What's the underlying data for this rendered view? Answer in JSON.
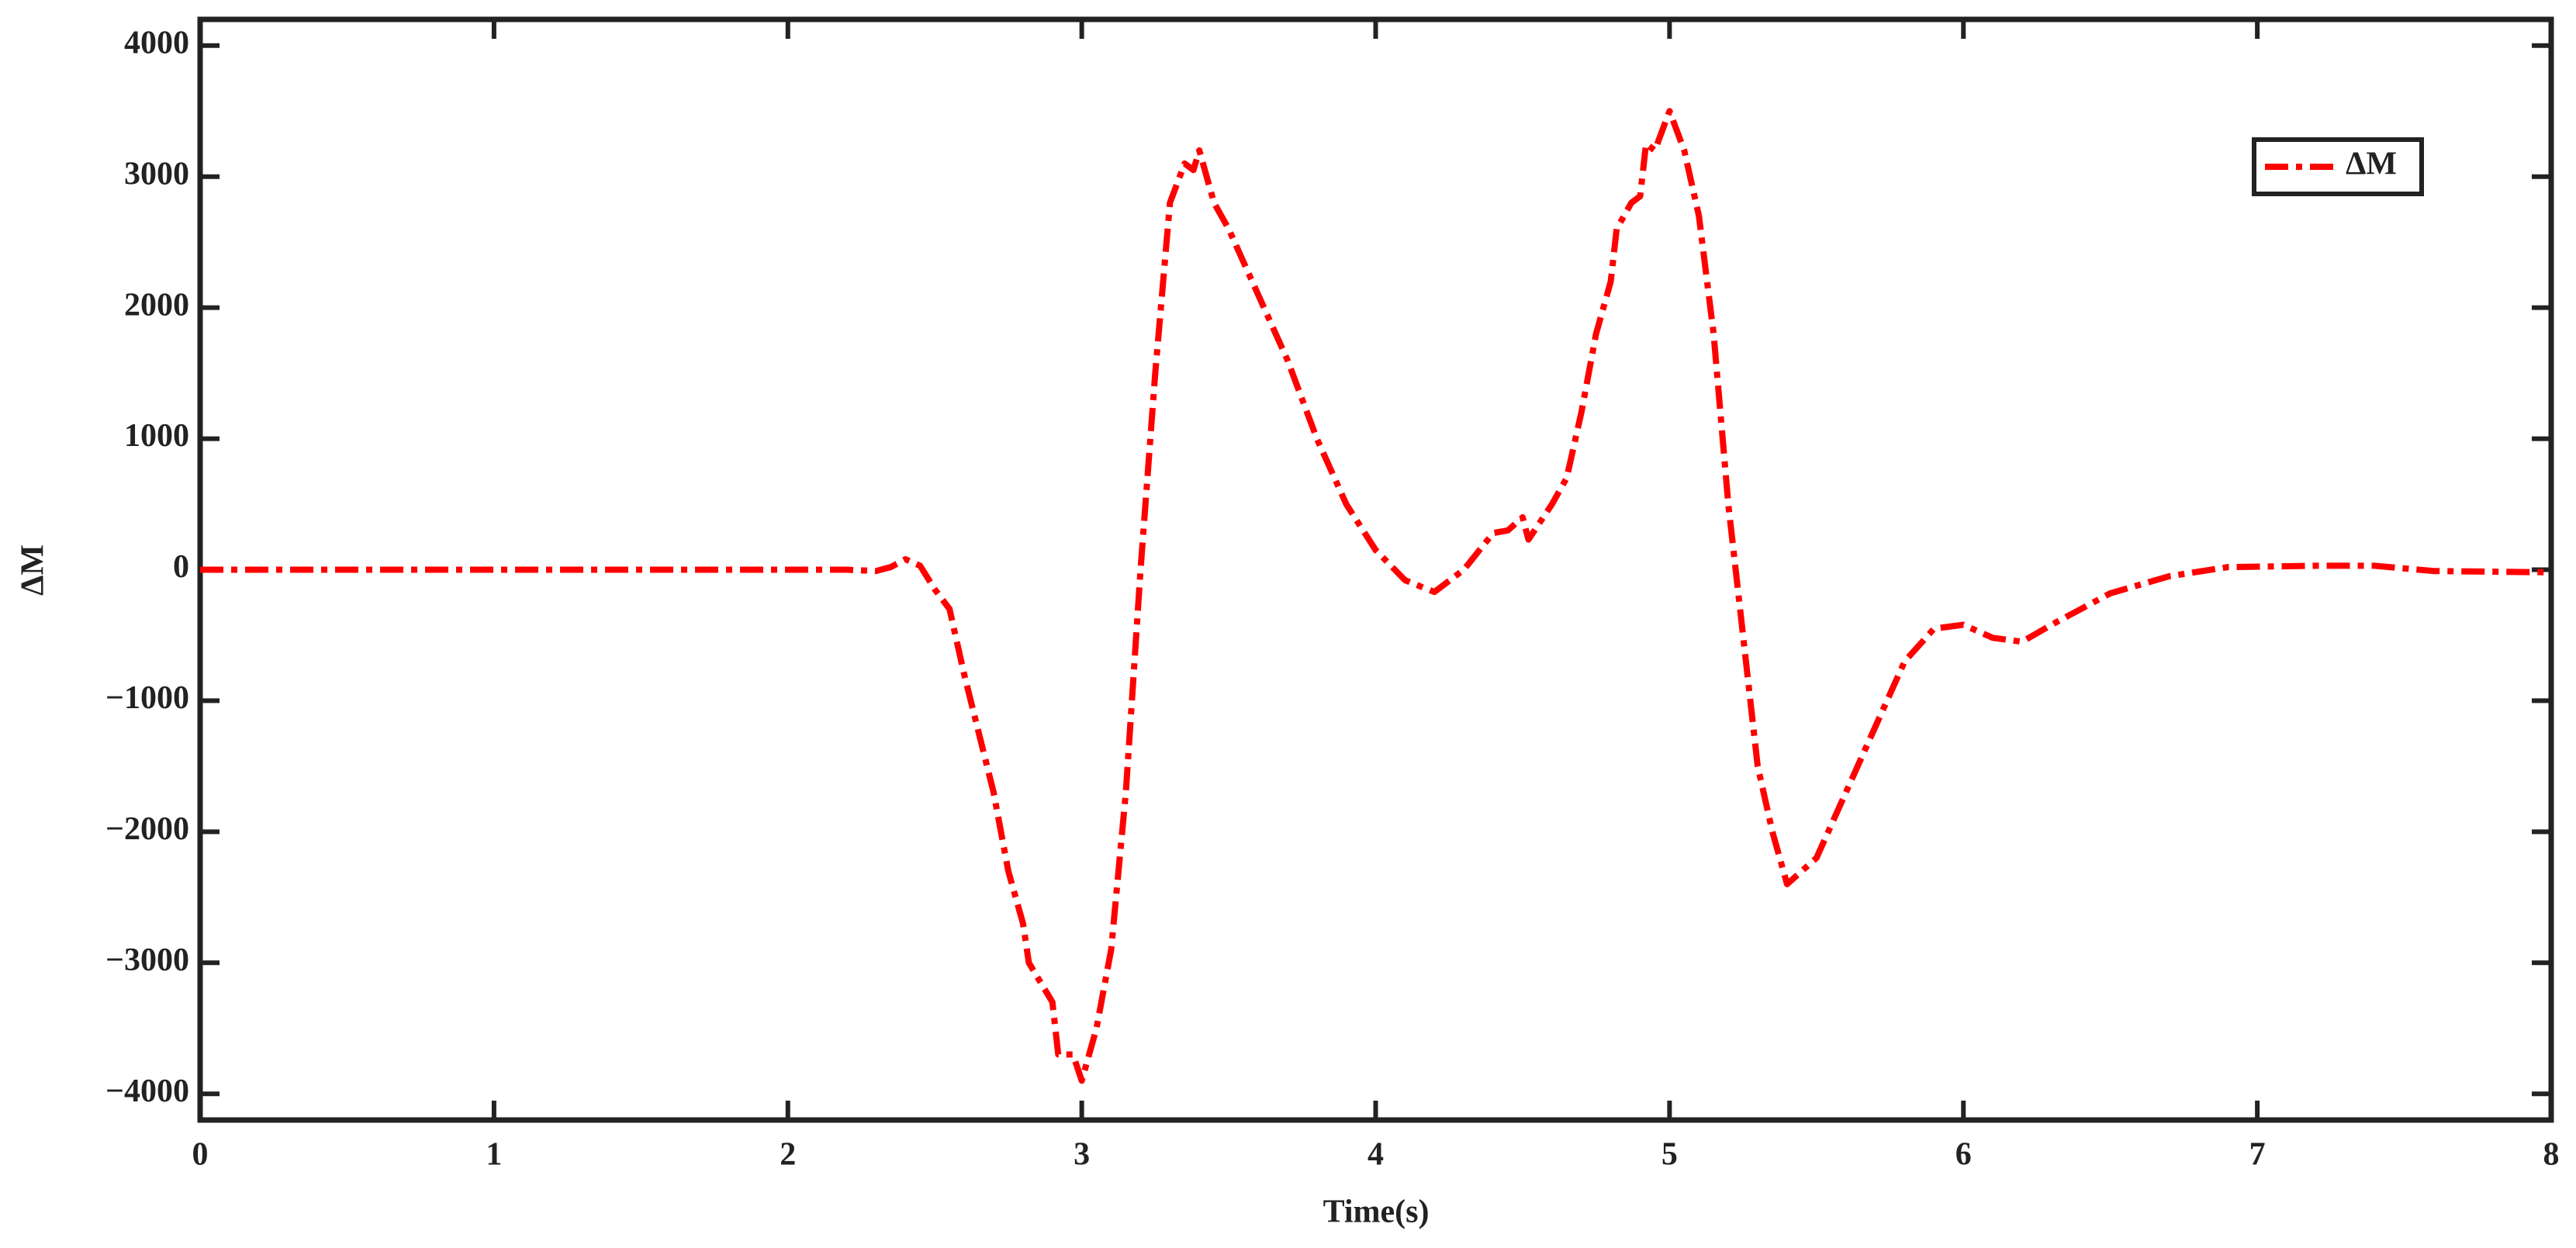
{
  "chart_data": {
    "type": "line",
    "x_label": "Time(s)",
    "y_label": "ΔM",
    "x": [
      0,
      2.2,
      2.3,
      2.35,
      2.4,
      2.45,
      2.5,
      2.55,
      2.6,
      2.7,
      2.75,
      2.8,
      2.82,
      2.9,
      2.92,
      2.97,
      3.0,
      3.05,
      3.1,
      3.15,
      3.2,
      3.25,
      3.3,
      3.35,
      3.38,
      3.4,
      3.45,
      3.5,
      3.6,
      3.7,
      3.8,
      3.9,
      4.0,
      4.1,
      4.2,
      4.3,
      4.4,
      4.45,
      4.5,
      4.52,
      4.6,
      4.65,
      4.7,
      4.75,
      4.8,
      4.82,
      4.87,
      4.9,
      4.92,
      4.95,
      5.0,
      5.05,
      5.1,
      5.15,
      5.2,
      5.3,
      5.35,
      5.4,
      5.45,
      5.5,
      5.6,
      5.7,
      5.8,
      5.9,
      6.0,
      6.1,
      6.2,
      6.3,
      6.5,
      6.7,
      6.9,
      7.2,
      7.4,
      7.6,
      8.0
    ],
    "series": [
      {
        "name": "ΔM",
        "color": "#ff0000",
        "values": [
          0,
          0,
          -10,
          20,
          80,
          30,
          -150,
          -300,
          -800,
          -1700,
          -2300,
          -2700,
          -3000,
          -3300,
          -3700,
          -3700,
          -3900,
          -3500,
          -2900,
          -1700,
          0,
          1500,
          2800,
          3100,
          3050,
          3200,
          2800,
          2600,
          2100,
          1600,
          1000,
          500,
          150,
          -80,
          -170,
          0,
          280,
          300,
          400,
          230,
          500,
          700,
          1200,
          1800,
          2200,
          2600,
          2800,
          2850,
          3250,
          3200,
          3500,
          3200,
          2700,
          1800,
          500,
          -1500,
          -2000,
          -2400,
          -2300,
          -2200,
          -1700,
          -1200,
          -700,
          -450,
          -420,
          -520,
          -550,
          -420,
          -180,
          -50,
          20,
          30,
          30,
          -10,
          -20
        ]
      }
    ],
    "xlim": [
      0,
      8
    ],
    "xticks": [
      0,
      1,
      2,
      3,
      4,
      5,
      6,
      7,
      8
    ],
    "ylim": [
      -4200,
      4200
    ],
    "yticks": [
      {
        "value": -4000,
        "label": "−4000"
      },
      {
        "value": -3000,
        "label": "−3000"
      },
      {
        "value": -2000,
        "label": "−2000"
      },
      {
        "value": -1000,
        "label": "−1000"
      },
      0,
      1000,
      2000,
      3000,
      4000
    ],
    "legend": "upper right",
    "grid": false
  }
}
